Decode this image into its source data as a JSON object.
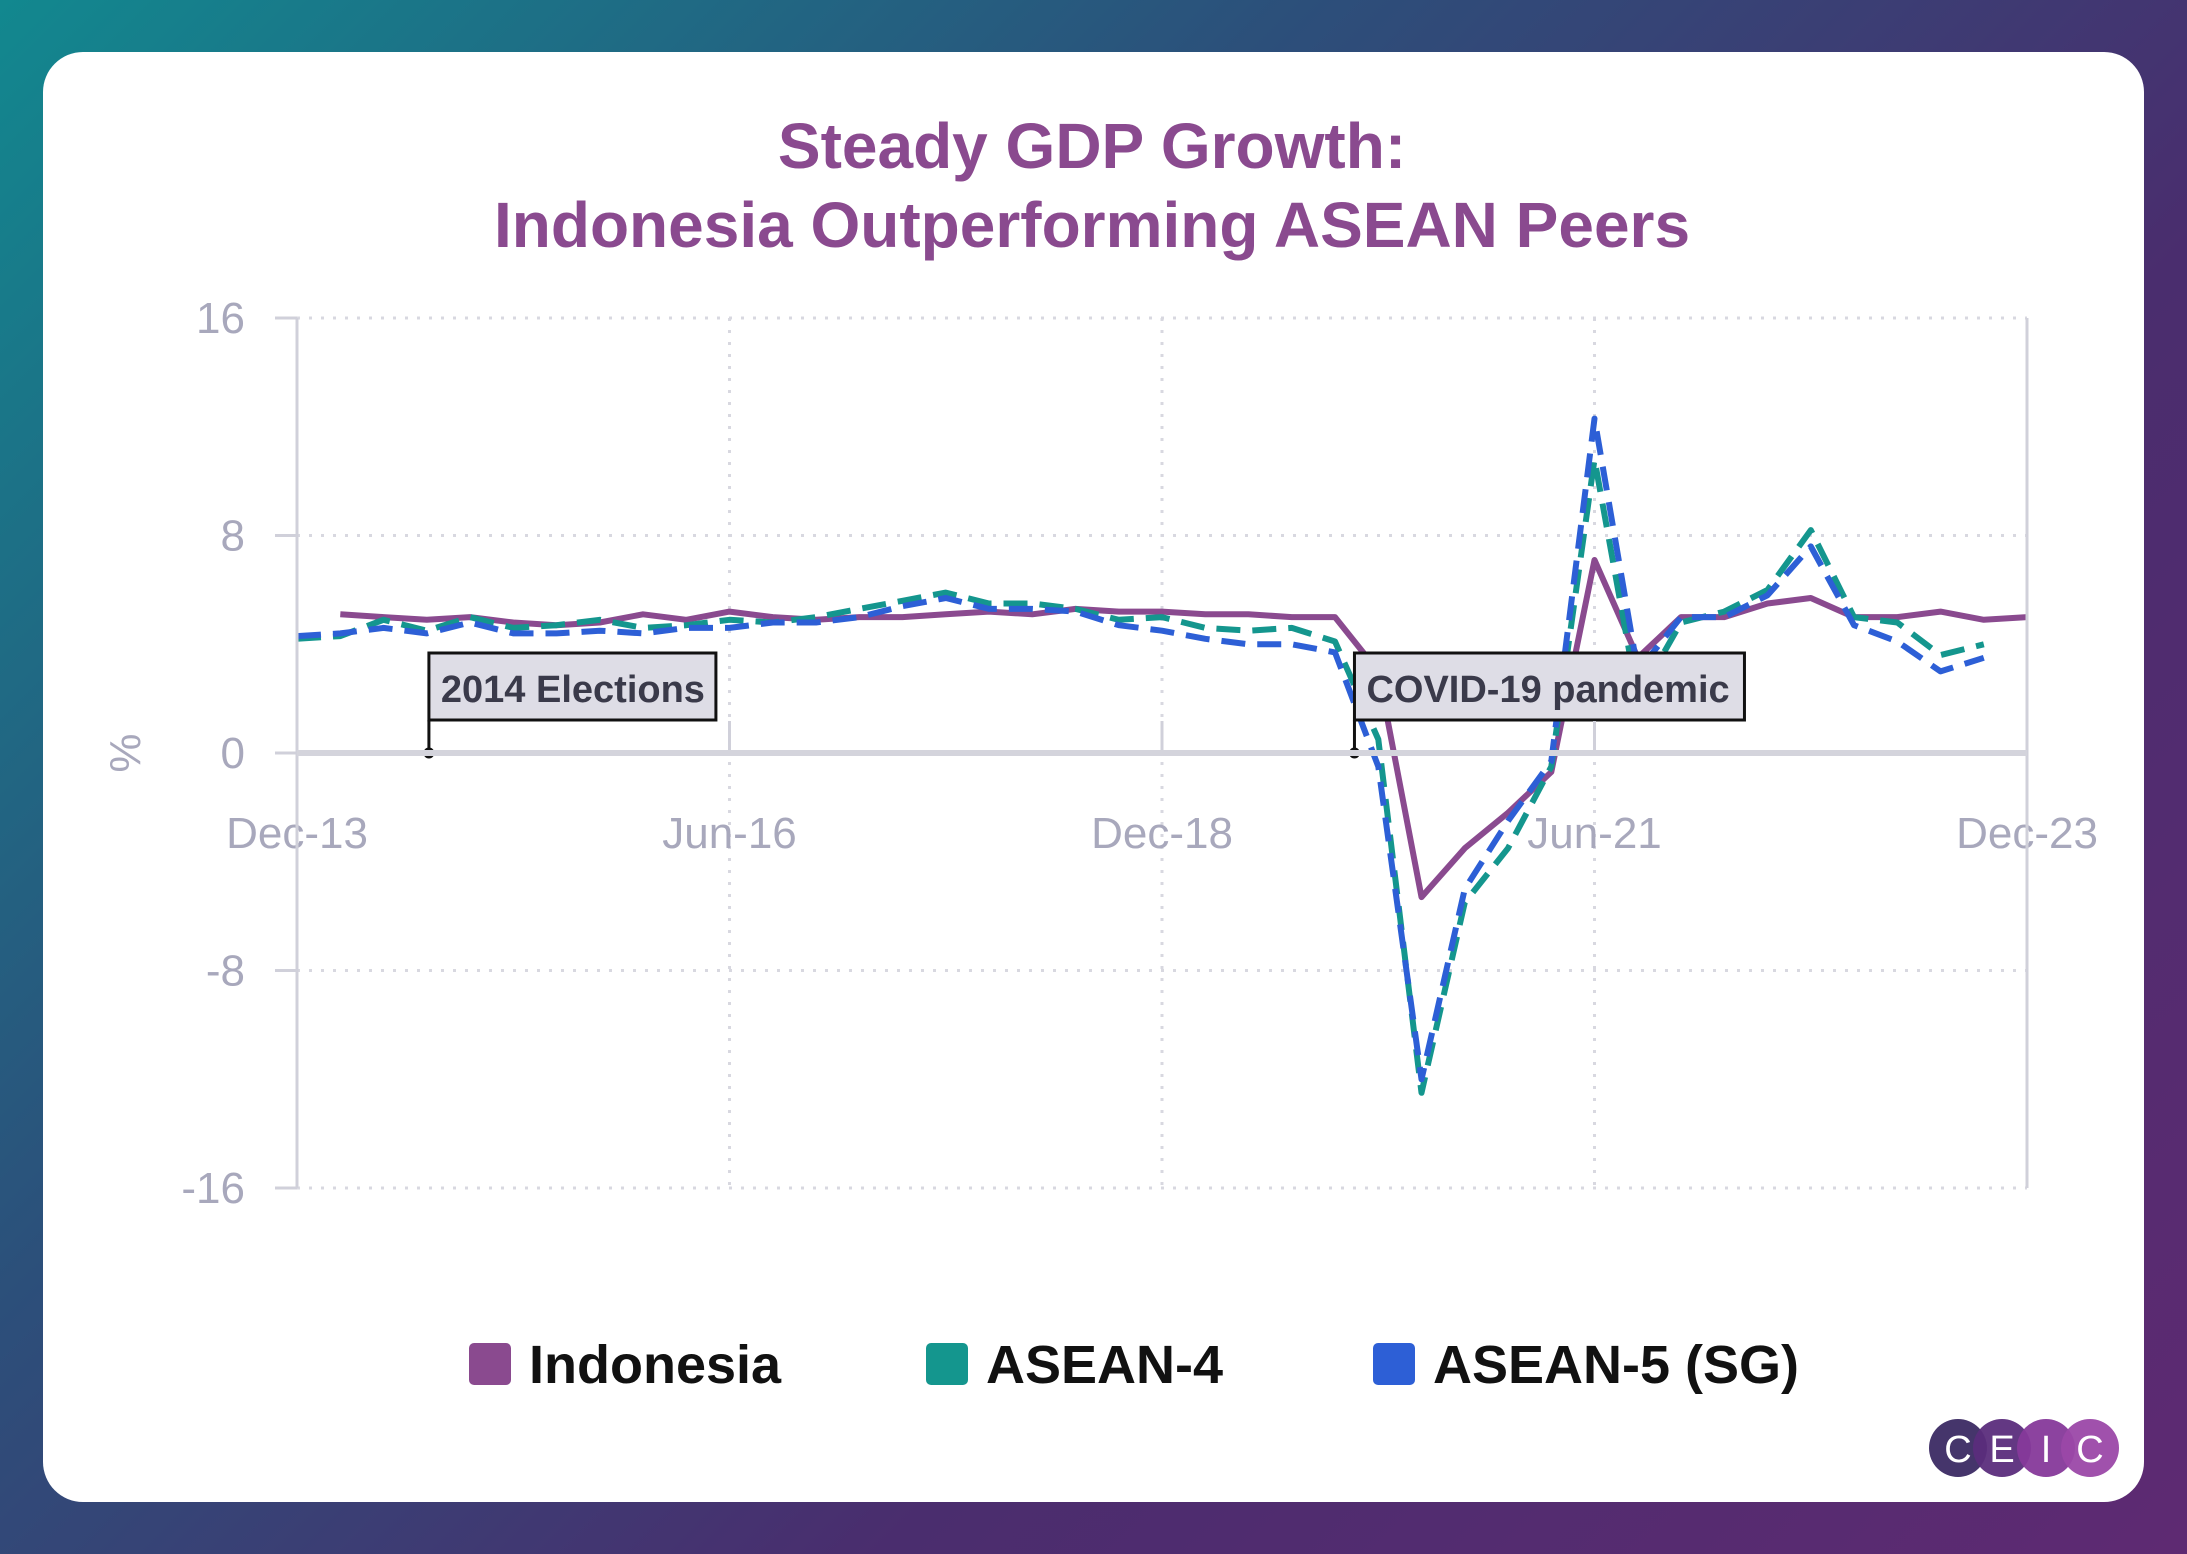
{
  "chart_data": {
    "type": "line",
    "title": [
      "Steady GDP Growth:",
      "Indonesia Outperforming ASEAN Peers"
    ],
    "ylabel": "%",
    "xlabel": "",
    "ylim": [
      -16,
      16
    ],
    "yticks": [
      "16",
      "8",
      "0",
      "-8",
      "-16"
    ],
    "xticks": [
      "Dec-13",
      "Jun-16",
      "Dec-18",
      "Jun-21",
      "Dec-23"
    ],
    "x_frequency": "quarterly",
    "x_start": "Dec-13",
    "x_end": "Dec-23",
    "grid": true,
    "legend_position": "bottom",
    "series": [
      {
        "name": "Indonesia",
        "color": "#8a4a8f",
        "style": "solid",
        "start": "Mar-14",
        "values": [
          5.1,
          5.0,
          4.9,
          5.0,
          4.8,
          4.7,
          4.8,
          5.1,
          4.9,
          5.2,
          5.0,
          4.9,
          5.0,
          5.0,
          5.1,
          5.2,
          5.1,
          5.3,
          5.2,
          5.2,
          5.1,
          5.1,
          5.0,
          5.0,
          3.0,
          -5.3,
          -3.5,
          -2.2,
          -0.7,
          7.1,
          3.5,
          5.0,
          5.0,
          5.5,
          5.7,
          5.0,
          5.0,
          5.2,
          4.9,
          5.0
        ]
      },
      {
        "name": "ASEAN-4",
        "color": "#14968e",
        "style": "dashed",
        "start": "Dec-13",
        "values": [
          4.2,
          4.3,
          4.9,
          4.5,
          5.0,
          4.6,
          4.7,
          4.9,
          4.6,
          4.7,
          4.9,
          4.8,
          5.0,
          5.3,
          5.6,
          5.9,
          5.5,
          5.5,
          5.3,
          4.9,
          5.0,
          4.6,
          4.5,
          4.6,
          4.1,
          0.5,
          -12.5,
          -5.5,
          -3.5,
          -0.5,
          10.8,
          2.0,
          4.8,
          5.2,
          6.0,
          8.2,
          5.0,
          4.8,
          3.6,
          4.0
        ]
      },
      {
        "name": "ASEAN-5 (SG)",
        "color": "#2d5fd6",
        "style": "dashed",
        "start": "Dec-13",
        "values": [
          4.3,
          4.4,
          4.6,
          4.4,
          4.8,
          4.4,
          4.4,
          4.5,
          4.4,
          4.6,
          4.6,
          4.8,
          4.8,
          5.0,
          5.4,
          5.7,
          5.3,
          5.3,
          5.2,
          4.7,
          4.5,
          4.2,
          4.0,
          4.0,
          3.7,
          -0.5,
          -12.0,
          -5.0,
          -2.5,
          -0.3,
          12.3,
          3.0,
          5.0,
          5.0,
          5.8,
          7.6,
          4.7,
          4.1,
          3.0,
          3.5
        ]
      }
    ],
    "annotations": [
      {
        "label": "2014 Elections"
      },
      {
        "label": "COVID-19 pandemic"
      }
    ]
  },
  "logo": {
    "letters": [
      "C",
      "E",
      "I",
      "C"
    ],
    "colors": [
      "#3b2a63",
      "#5b2d7c",
      "#86399a",
      "#9b48a8"
    ]
  }
}
